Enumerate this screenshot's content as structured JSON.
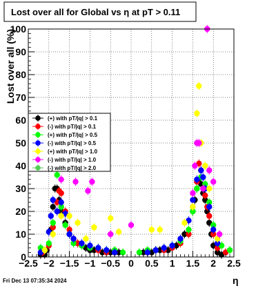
{
  "chart_data": {
    "type": "scatter",
    "title": "Lost over all for Global vs    η at pT > 0.11",
    "xlabel": "η",
    "ylabel": "Lost over all (%)",
    "xlim": [
      -2.5,
      2.5
    ],
    "ylim": [
      0,
      100
    ],
    "x_ticks": [
      -2.5,
      -2,
      -1.5,
      -1,
      -0.5,
      0,
      0.5,
      1,
      1.5,
      2,
      2.5
    ],
    "x_tick_labels": [
      "−2.5",
      "−2",
      "−1.5",
      "−1",
      "−0.5",
      "0",
      "0.5",
      "1",
      "1.5",
      "2",
      "2.5"
    ],
    "y_ticks": [
      0,
      10,
      20,
      30,
      40,
      50,
      60,
      70,
      80,
      90,
      100
    ],
    "y_tick_labels": [
      "0",
      "10",
      "20",
      "30",
      "40",
      "50",
      "60",
      "70",
      "80",
      "90",
      "100"
    ],
    "grid": true,
    "legend_position": "left-middle",
    "footer_text": "Fri Dec 13 07:35:34 2024",
    "series": [
      {
        "name": "(+) with pT/|q| > 0.1",
        "color": "#000000",
        "x": [
          -2.2,
          -2.1,
          -2.05,
          -1.95,
          -1.9,
          -1.85,
          -1.8,
          -1.75,
          -1.7,
          -1.6,
          -1.5,
          -1.4,
          -1.3,
          -1.2,
          -1.1,
          -1.0,
          -0.9,
          -0.7,
          -0.5,
          -0.3,
          0.3,
          0.5,
          0.7,
          0.9,
          1.1,
          1.3,
          1.5,
          1.55,
          1.6,
          1.65,
          1.7,
          1.75,
          1.8,
          1.85,
          1.9,
          1.95,
          2.0,
          2.1,
          2.2
        ],
        "y": [
          1,
          1,
          3,
          12,
          22,
          30,
          30,
          25,
          20,
          15,
          10,
          8,
          6,
          5,
          4,
          3,
          3,
          2,
          2,
          2,
          2,
          2,
          3,
          3,
          5,
          10,
          20,
          25,
          30,
          33,
          32,
          28,
          25,
          20,
          15,
          10,
          5,
          2,
          1
        ]
      },
      {
        "name": "(-) with pT/|q| > 0.1",
        "color": "#ff0000",
        "x": [
          -2.15,
          -2.0,
          -1.9,
          -1.8,
          -1.75,
          -1.7,
          -1.6,
          -1.5,
          -1.4,
          -1.3,
          -1.2,
          -1.0,
          -0.8,
          -0.6,
          -0.4,
          0.4,
          0.6,
          0.8,
          1.0,
          1.2,
          1.4,
          1.5,
          1.6,
          1.65,
          1.7,
          1.8,
          1.85,
          1.9,
          2.0,
          2.1,
          2.3
        ],
        "y": [
          2,
          5,
          13,
          24,
          29,
          28,
          20,
          12,
          8,
          6,
          5,
          4,
          3,
          2,
          2,
          2,
          3,
          3,
          4,
          6,
          10,
          22,
          33,
          41,
          38,
          27,
          22,
          18,
          10,
          4,
          2
        ]
      },
      {
        "name": "(+) with pT/|q| > 0.5",
        "color": "#00ff00",
        "x": [
          -2.2,
          -2.1,
          -2.0,
          -1.9,
          -1.8,
          -1.7,
          -1.6,
          -1.5,
          -1.4,
          -1.2,
          -1.0,
          -0.8,
          -0.6,
          -0.4,
          -0.2,
          0.2,
          0.4,
          0.6,
          0.8,
          1.0,
          1.2,
          1.4,
          1.5,
          1.6,
          1.7,
          1.8,
          1.9,
          2.0,
          2.2,
          2.4
        ],
        "y": [
          4,
          3,
          6,
          15,
          36,
          22,
          14,
          10,
          6,
          5,
          4,
          4,
          3,
          3,
          2,
          2,
          3,
          3,
          4,
          5,
          7,
          12,
          20,
          30,
          35,
          32,
          24,
          14,
          5,
          3
        ]
      },
      {
        "name": "(-) with pT/|q| > 0.5",
        "color": "#0000ff",
        "x": [
          -2.2,
          -2.0,
          -1.95,
          -1.9,
          -1.8,
          -1.7,
          -1.6,
          -1.5,
          -1.4,
          -1.2,
          -1.0,
          -0.8,
          -0.6,
          -0.4,
          0.4,
          0.6,
          0.8,
          1.0,
          1.2,
          1.4,
          1.5,
          1.6,
          1.7,
          1.75,
          1.8,
          1.9,
          2.0,
          2.1
        ],
        "y": [
          2,
          11,
          18,
          25,
          20,
          24,
          19,
          10,
          8,
          6,
          5,
          4,
          3,
          2,
          2,
          3,
          4,
          5,
          8,
          16,
          25,
          34,
          38,
          35,
          30,
          22,
          12,
          6
        ]
      },
      {
        "name": "(+) with pT/|q| > 1.0",
        "color": "#ffff00",
        "x": [
          -2.1,
          -1.9,
          -1.7,
          -1.5,
          -1.3,
          -1.1,
          -0.9,
          -0.5,
          -0.3,
          0.5,
          0.7,
          1.3,
          1.5,
          1.6,
          1.65,
          1.7,
          1.8,
          1.9,
          2.1
        ],
        "y": [
          3,
          10,
          18,
          18,
          15,
          8,
          13,
          17,
          11,
          12,
          12,
          15,
          22,
          63,
          75,
          50,
          40,
          30,
          8
        ]
      },
      {
        "name": "(-) with pT/|q| > 1.0",
        "color": "#ff00ff",
        "x": [
          -1.7,
          -1.35,
          -1.05,
          -0.95,
          -0.5,
          0.0,
          1.5,
          1.55,
          1.6,
          1.65,
          1.75,
          1.85,
          1.9,
          2.0,
          2.15
        ],
        "y": [
          34,
          33,
          29,
          33,
          10,
          14,
          28,
          40,
          50,
          50,
          30,
          100,
          38,
          33,
          10
        ]
      },
      {
        "name": "(-) with pT/|q| > 2.0",
        "color": "#55cc55",
        "x": [],
        "y": []
      }
    ]
  }
}
